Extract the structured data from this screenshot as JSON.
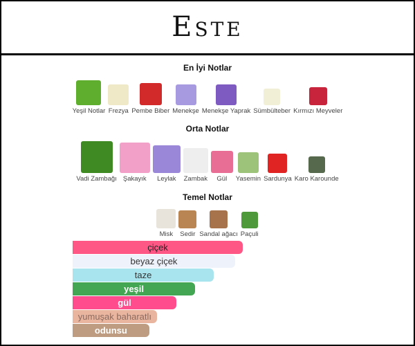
{
  "brand": {
    "title": "Este"
  },
  "top_notes": {
    "heading": "En İyi Notlar",
    "items": [
      {
        "label": "Yeşil Notlar",
        "color": "#5fae2e"
      },
      {
        "label": "Frezya",
        "color": "#efe9c8"
      },
      {
        "label": "Pembe Biber",
        "color": "#d22a2a"
      },
      {
        "label": "Menekşe",
        "color": "#a79ae0"
      },
      {
        "label": "Menekşe Yaprak",
        "color": "#7d5bc0"
      },
      {
        "label": "Sümbülteber",
        "color": "#f1f0d6"
      },
      {
        "label": "Kırmızı Meyveler",
        "color": "#c8243c"
      }
    ]
  },
  "middle_notes": {
    "heading": "Orta Notlar",
    "items": [
      {
        "label": "Vadi Zambağı",
        "color": "#3f8a22"
      },
      {
        "label": "Şakayık",
        "color": "#f2a0c8"
      },
      {
        "label": "Leylak",
        "color": "#9b87d8"
      },
      {
        "label": "Zambak",
        "color": "#eeeeee"
      },
      {
        "label": "Gül",
        "color": "#e86e96"
      },
      {
        "label": "Yasemin",
        "color": "#9dc27a"
      },
      {
        "label": "Sardunya",
        "color": "#e02424"
      },
      {
        "label": "Karo Karounde",
        "color": "#56694c"
      }
    ]
  },
  "base_notes": {
    "heading": "Temel Notlar",
    "items": [
      {
        "label": "Misk",
        "color": "#e8e4dc"
      },
      {
        "label": "Sedir",
        "color": "#b98552"
      },
      {
        "label": "Sandal ağacı",
        "color": "#a7734a"
      },
      {
        "label": "Paçuli",
        "color": "#4e9a3a"
      }
    ]
  },
  "accords": [
    {
      "label": "çiçek",
      "percent": 100,
      "color": "#fe5785",
      "text": "#222"
    },
    {
      "label": "beyaz çiçek",
      "percent": 95.5,
      "color": "#eef2fa",
      "text": "#333"
    },
    {
      "label": "taze",
      "percent": 83,
      "color": "#a8e4ee",
      "text": "#333"
    },
    {
      "label": "yeşil",
      "percent": 72,
      "color": "#43a653",
      "text": "#fff"
    },
    {
      "label": "gül",
      "percent": 61,
      "color": "#fe4c8c",
      "text": "#fff"
    },
    {
      "label": "yumuşak baharatlı",
      "percent": 49.5,
      "color": "#eab59e",
      "text": "#8a6a60"
    },
    {
      "label": "odunsu",
      "percent": 45,
      "color": "#bd9c82",
      "text": "#fff"
    }
  ]
}
